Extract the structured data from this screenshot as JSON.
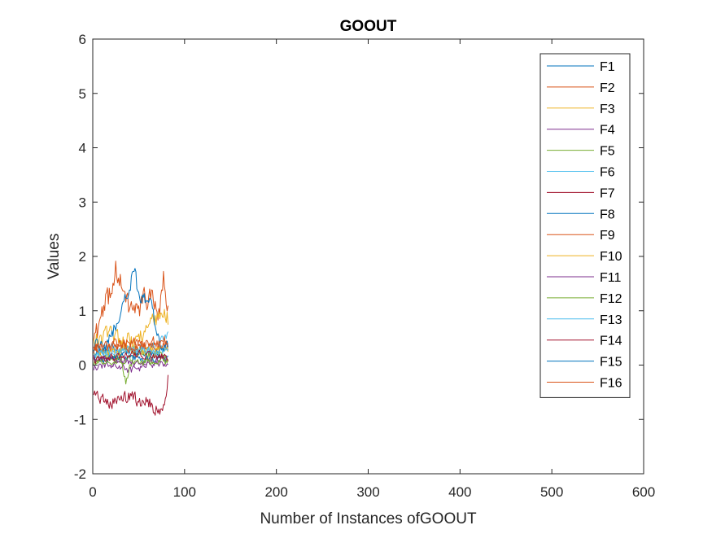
{
  "chart_data": {
    "type": "line",
    "title": "GOOUT",
    "xlabel": "Number of Instances ofGOOUT",
    "ylabel": "Values",
    "xlim": [
      0,
      600
    ],
    "ylim": [
      -2,
      6
    ],
    "xticks": [
      0,
      100,
      200,
      300,
      400,
      500,
      600
    ],
    "yticks": [
      -2,
      -1,
      0,
      1,
      2,
      3,
      4,
      5,
      6
    ],
    "grid": false,
    "legend_position": "top-right",
    "n_points": 82,
    "series": [
      {
        "name": "F1",
        "color": "#0072BD",
        "level": 0.25,
        "amplitude": 0.12,
        "profile": [
          [
            0,
            0.2
          ],
          [
            20,
            0.3
          ],
          [
            40,
            0.25
          ],
          [
            60,
            0.2
          ],
          [
            81,
            0.3
          ]
        ]
      },
      {
        "name": "F2",
        "color": "#D95319",
        "level": 0.4,
        "amplitude": 0.35,
        "profile": [
          [
            0,
            0.5
          ],
          [
            10,
            0.9
          ],
          [
            20,
            1.5
          ],
          [
            25,
            1.75
          ],
          [
            35,
            1.1
          ],
          [
            50,
            1.0
          ],
          [
            60,
            1.35
          ],
          [
            70,
            0.9
          ],
          [
            76,
            1.55
          ],
          [
            81,
            0.95
          ]
        ]
      },
      {
        "name": "F3",
        "color": "#EDB120",
        "level": 0.4,
        "amplitude": 0.25,
        "profile": [
          [
            0,
            0.4
          ],
          [
            20,
            0.6
          ],
          [
            40,
            0.4
          ],
          [
            60,
            0.7
          ],
          [
            75,
            0.9
          ],
          [
            81,
            0.85
          ]
        ]
      },
      {
        "name": "F4",
        "color": "#7E2F8E",
        "level": 0.0,
        "amplitude": 0.1,
        "profile": [
          [
            0,
            -0.05
          ],
          [
            20,
            0.0
          ],
          [
            40,
            -0.1
          ],
          [
            60,
            0.0
          ],
          [
            81,
            0.05
          ]
        ]
      },
      {
        "name": "F5",
        "color": "#77AC30",
        "level": 0.15,
        "amplitude": 0.15,
        "profile": [
          [
            0,
            0.1
          ],
          [
            30,
            0.15
          ],
          [
            35,
            -0.25
          ],
          [
            45,
            0.2
          ],
          [
            81,
            0.15
          ]
        ]
      },
      {
        "name": "F6",
        "color": "#4DBEEE",
        "level": 0.2,
        "amplitude": 0.15,
        "profile": [
          [
            0,
            0.2
          ],
          [
            30,
            0.3
          ],
          [
            60,
            0.25
          ],
          [
            81,
            0.6
          ]
        ]
      },
      {
        "name": "F7",
        "color": "#A2142F",
        "level": -0.6,
        "amplitude": 0.18,
        "profile": [
          [
            0,
            -0.5
          ],
          [
            20,
            -0.7
          ],
          [
            40,
            -0.6
          ],
          [
            60,
            -0.7
          ],
          [
            75,
            -0.9
          ],
          [
            81,
            -0.2
          ]
        ]
      },
      {
        "name": "F8",
        "color": "#0072BD",
        "level": 0.1,
        "amplitude": 0.1,
        "profile": [
          [
            0,
            0.1
          ],
          [
            40,
            0.15
          ],
          [
            81,
            0.1
          ]
        ]
      },
      {
        "name": "F9",
        "color": "#D95319",
        "level": 0.35,
        "amplitude": 0.15,
        "profile": [
          [
            0,
            0.3
          ],
          [
            40,
            0.4
          ],
          [
            81,
            0.35
          ]
        ]
      },
      {
        "name": "F10",
        "color": "#EDB120",
        "level": 0.25,
        "amplitude": 0.12,
        "profile": [
          [
            0,
            0.2
          ],
          [
            40,
            0.3
          ],
          [
            81,
            0.25
          ]
        ]
      },
      {
        "name": "F11",
        "color": "#7E2F8E",
        "level": 0.1,
        "amplitude": 0.1,
        "profile": [
          [
            0,
            0.15
          ],
          [
            40,
            0.05
          ],
          [
            81,
            0.1
          ]
        ]
      },
      {
        "name": "F12",
        "color": "#77AC30",
        "level": 0.05,
        "amplitude": 0.1,
        "profile": [
          [
            0,
            0.05
          ],
          [
            40,
            0.1
          ],
          [
            81,
            0.05
          ]
        ]
      },
      {
        "name": "F13",
        "color": "#4DBEEE",
        "level": 0.25,
        "amplitude": 0.12,
        "profile": [
          [
            0,
            0.2
          ],
          [
            40,
            0.3
          ],
          [
            81,
            0.25
          ]
        ]
      },
      {
        "name": "F14",
        "color": "#A2142F",
        "level": 0.15,
        "amplitude": 0.1,
        "profile": [
          [
            0,
            0.1
          ],
          [
            40,
            0.2
          ],
          [
            81,
            0.15
          ]
        ]
      },
      {
        "name": "F15",
        "color": "#0072BD",
        "level": 0.4,
        "amplitude": 0.2,
        "profile": [
          [
            0,
            0.3
          ],
          [
            15,
            0.4
          ],
          [
            30,
            1.0
          ],
          [
            40,
            1.5
          ],
          [
            44,
            1.8
          ],
          [
            50,
            1.1
          ],
          [
            60,
            1.3
          ],
          [
            70,
            0.5
          ],
          [
            81,
            0.4
          ]
        ]
      },
      {
        "name": "F16",
        "color": "#D95319",
        "level": 0.3,
        "amplitude": 0.15,
        "profile": [
          [
            0,
            0.3
          ],
          [
            40,
            0.35
          ],
          [
            81,
            0.45
          ]
        ]
      }
    ]
  }
}
